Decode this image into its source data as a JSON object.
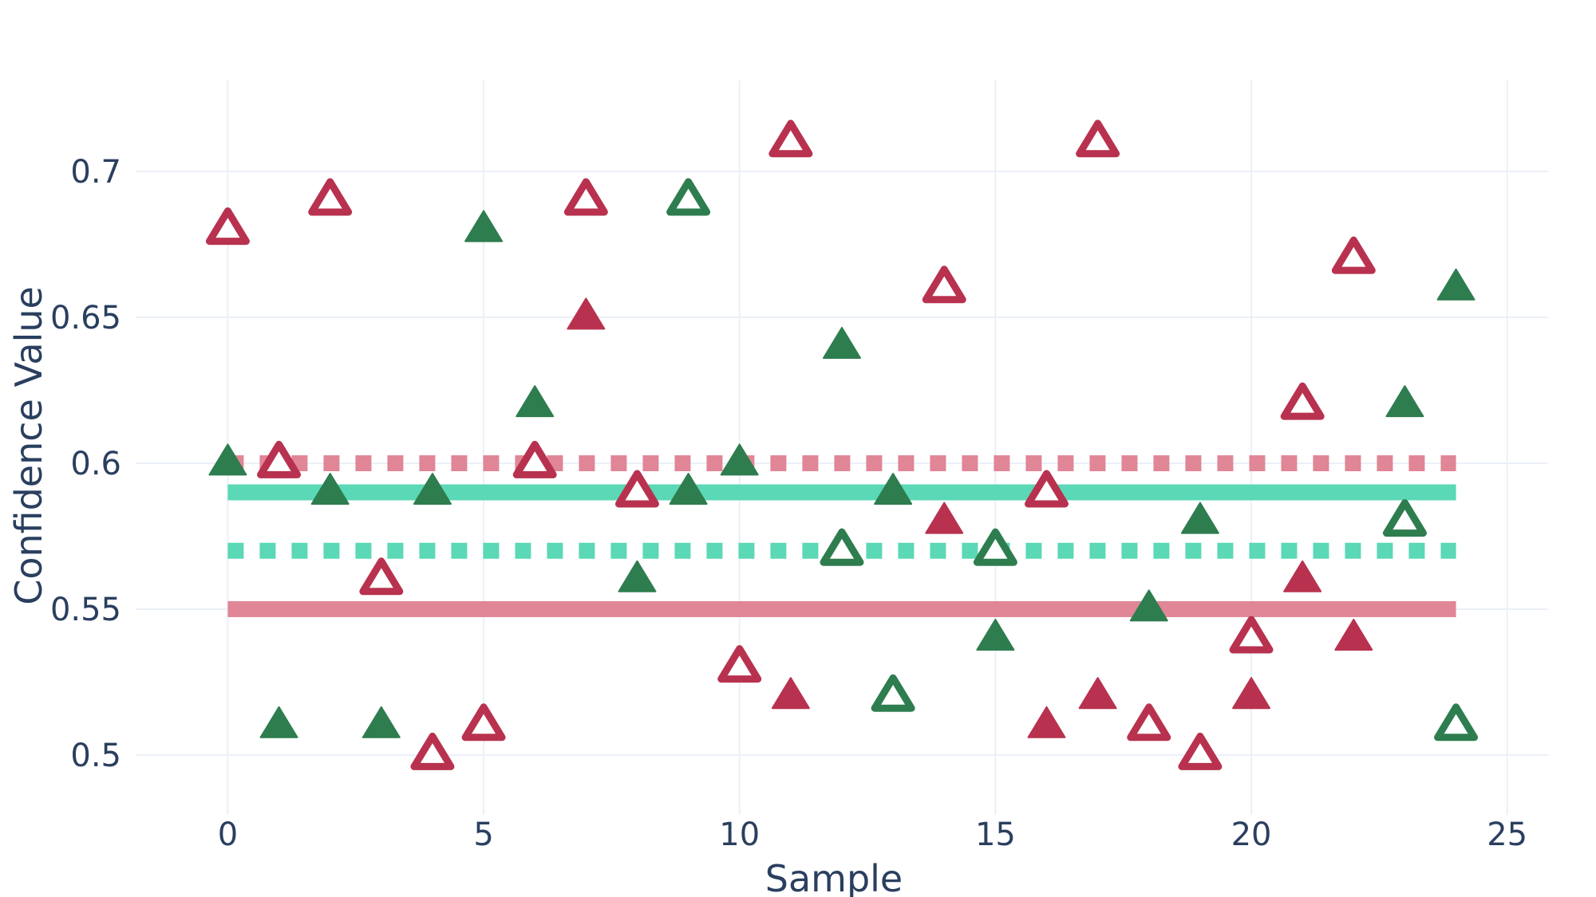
{
  "chart_data": {
    "type": "scatter",
    "title": "",
    "xlabel": "Sample",
    "ylabel": "Confidence Value",
    "xlim": [
      -1.8,
      25.8
    ],
    "ylim": [
      0.4795,
      0.7314
    ],
    "x_ticks": [
      0,
      5,
      10,
      15,
      20,
      25
    ],
    "x_tick_labels": [
      "0",
      "5",
      "10",
      "15",
      "20",
      "25"
    ],
    "y_ticks": [
      0.5,
      0.55,
      0.6,
      0.65,
      0.7
    ],
    "y_tick_labels": [
      "0.5",
      "0.55",
      "0.6",
      "0.65",
      "0.7"
    ],
    "grid": true,
    "legend": "none",
    "colors": {
      "crimson": "#b8324f",
      "green": "#2e7d4f",
      "crimson_light": "#e08697",
      "teal_light": "#5bd8b6"
    },
    "series": [
      {
        "marker": "triangle-up",
        "fill": "solid",
        "color": "#2e7d4f",
        "points": [
          [
            0,
            0.6
          ],
          [
            1,
            0.51
          ],
          [
            2,
            0.59
          ],
          [
            3,
            0.51
          ],
          [
            4,
            0.59
          ],
          [
            5,
            0.68
          ],
          [
            6,
            0.62
          ],
          [
            8,
            0.56
          ],
          [
            9,
            0.59
          ],
          [
            10,
            0.6
          ],
          [
            12,
            0.64
          ],
          [
            13,
            0.59
          ],
          [
            15,
            0.54
          ],
          [
            18,
            0.55
          ],
          [
            19,
            0.58
          ],
          [
            23,
            0.62
          ],
          [
            24,
            0.66
          ]
        ]
      },
      {
        "marker": "triangle-up",
        "fill": "open",
        "color": "#2e7d4f",
        "points": [
          [
            9,
            0.69
          ],
          [
            12,
            0.57
          ],
          [
            13,
            0.52
          ],
          [
            15,
            0.57
          ],
          [
            23,
            0.58
          ],
          [
            24,
            0.51
          ]
        ]
      },
      {
        "marker": "triangle-up",
        "fill": "solid",
        "color": "#b8324f",
        "points": [
          [
            7,
            0.65
          ],
          [
            11,
            0.52
          ],
          [
            14,
            0.58
          ],
          [
            16,
            0.51
          ],
          [
            17,
            0.52
          ],
          [
            20,
            0.52
          ],
          [
            21,
            0.56
          ],
          [
            22,
            0.54
          ]
        ]
      },
      {
        "marker": "triangle-up",
        "fill": "open",
        "color": "#b8324f",
        "points": [
          [
            0,
            0.68
          ],
          [
            1,
            0.6
          ],
          [
            2,
            0.69
          ],
          [
            3,
            0.56
          ],
          [
            4,
            0.5
          ],
          [
            5,
            0.51
          ],
          [
            6,
            0.6
          ],
          [
            7,
            0.69
          ],
          [
            8,
            0.59
          ],
          [
            10,
            0.53
          ],
          [
            11,
            0.71
          ],
          [
            14,
            0.66
          ],
          [
            16,
            0.59
          ],
          [
            17,
            0.71
          ],
          [
            18,
            0.51
          ],
          [
            19,
            0.5
          ],
          [
            20,
            0.54
          ],
          [
            21,
            0.62
          ],
          [
            22,
            0.67
          ]
        ]
      }
    ],
    "reference_lines": [
      {
        "y": 0.59,
        "x_range": [
          0,
          24
        ],
        "style": "solid",
        "color": "#5bd8b6"
      },
      {
        "y": 0.57,
        "x_range": [
          0,
          24
        ],
        "style": "dotted",
        "color": "#5bd8b6"
      },
      {
        "y": 0.55,
        "x_range": [
          0,
          24
        ],
        "style": "solid",
        "color": "#e08697"
      },
      {
        "y": 0.6,
        "x_range": [
          0,
          24
        ],
        "style": "dotted",
        "color": "#e08697"
      }
    ]
  }
}
